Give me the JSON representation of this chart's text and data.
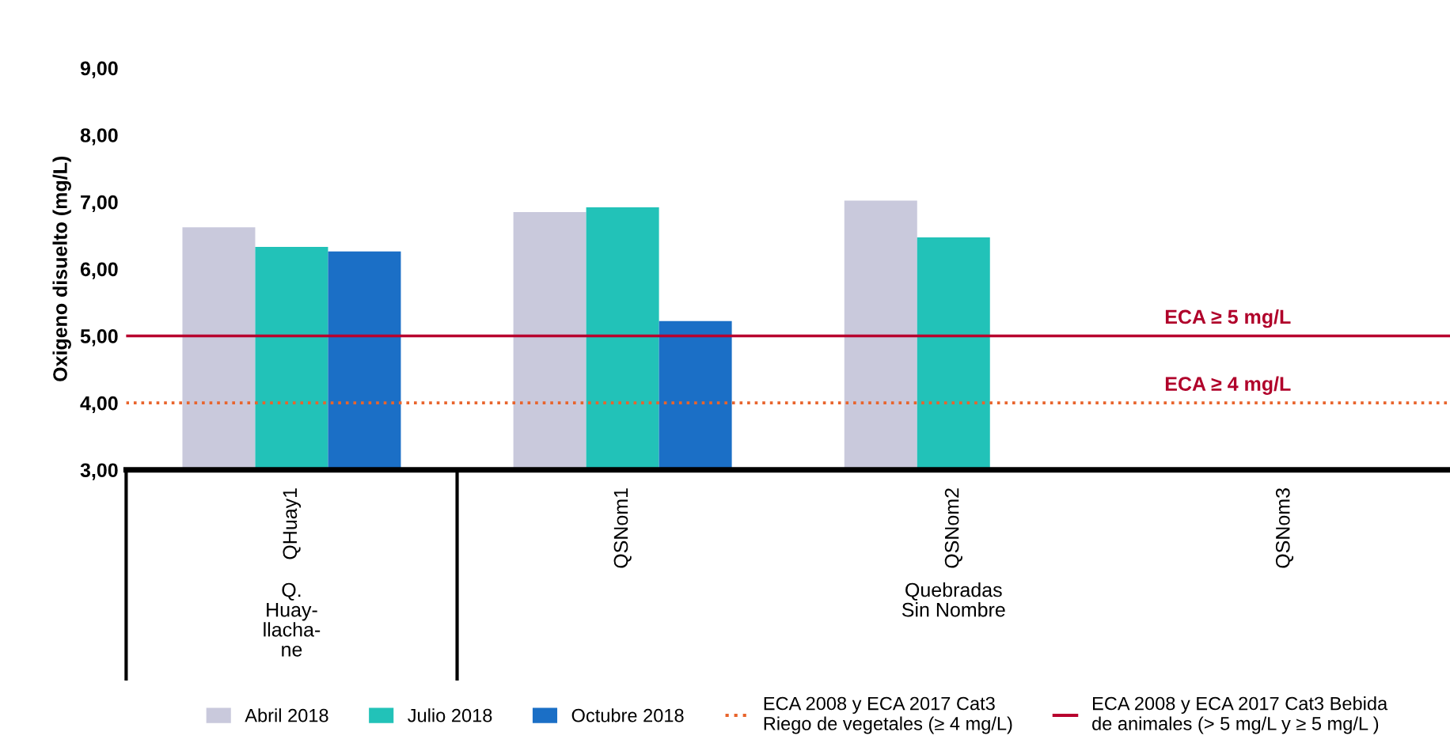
{
  "chart_data": {
    "type": "bar",
    "ylabel": "Oxigeno disuelto (mg/L)",
    "categories": [
      "QHuay1",
      "QSNom1",
      "QSNom2",
      "QSNom3"
    ],
    "series": [
      {
        "name": "Abril 2018",
        "color": "#c9c9dc",
        "values": [
          6.62,
          6.85,
          7.02,
          null
        ]
      },
      {
        "name": "Julio 2018",
        "color": "#22c2b8",
        "values": [
          6.33,
          6.92,
          6.47,
          null
        ]
      },
      {
        "name": "Octubre 2018",
        "color": "#1b6fc6",
        "values": [
          6.26,
          5.22,
          null,
          null
        ]
      }
    ],
    "ylim": [
      3,
      9
    ],
    "yticks": [
      {
        "value": 3,
        "label": "3,00"
      },
      {
        "value": 4,
        "label": "4,00"
      },
      {
        "value": 5,
        "label": "5,00"
      },
      {
        "value": 6,
        "label": "6,00"
      },
      {
        "value": 7,
        "label": "7,00"
      },
      {
        "value": 8,
        "label": "8,00"
      },
      {
        "value": 9,
        "label": "9,00"
      }
    ],
    "ref_lines": [
      {
        "axis": "y",
        "value": 4,
        "label": "ECA 2008 y ECA 2017 Cat3\nRiego de vegetales (≥ 4 mg/L)",
        "color": "#e8642c",
        "line_style": "dotted"
      },
      {
        "axis": "y",
        "value": 5,
        "label": "ECA 2008 y ECA 2017 Cat3 Bebida\nde animales (> 5 mg/L y ≥ 5 mg/L )",
        "color": "#b8002e",
        "line_style": "solid"
      }
    ],
    "annotations": [
      {
        "text": "ECA ≥ 5 mg/L",
        "y": 5
      },
      {
        "text": "ECA ≥ 4 mg/L",
        "y": 4
      },
      "Q.\nHuay-\nllacha-\nne",
      "Quebradas\nSin Nombre"
    ],
    "grid": false,
    "legend": "bottom"
  }
}
